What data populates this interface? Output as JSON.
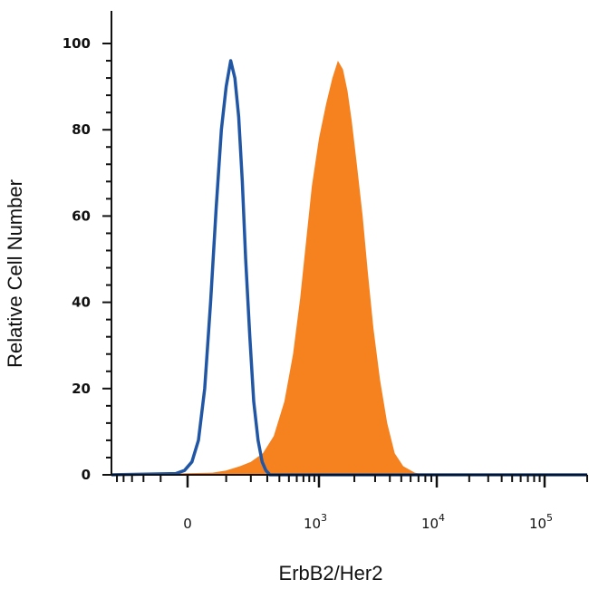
{
  "chart_data": {
    "type": "area",
    "xlabel": "ErbB2/Her2",
    "ylabel": "Relative Cell Number",
    "x_scale": "biexponential",
    "ylim": [
      0,
      100
    ],
    "xlim": [
      -600,
      200000
    ],
    "y_ticks": [
      {
        "value": 0,
        "label": "0"
      },
      {
        "value": 20,
        "label": "20"
      },
      {
        "value": 40,
        "label": "40"
      },
      {
        "value": 60,
        "label": "60"
      },
      {
        "value": 80,
        "label": "80"
      },
      {
        "value": 100,
        "label": "100"
      }
    ],
    "x_ticks": [
      {
        "value": 0,
        "base": "0",
        "exp": ""
      },
      {
        "value": 1000,
        "base": "10",
        "exp": "3"
      },
      {
        "value": 10000,
        "base": "10",
        "exp": "4"
      },
      {
        "value": 100000,
        "base": "10",
        "exp": "5"
      }
    ],
    "series": [
      {
        "style": "filled",
        "color": "#f5821f",
        "x": [
          -600,
          60,
          100,
          150,
          200,
          270,
          350,
          450,
          550,
          650,
          750,
          850,
          1000,
          1150,
          1300,
          1450,
          1600,
          1750,
          1900,
          2100,
          2350,
          2600,
          2900,
          3300,
          3800,
          4400,
          5200,
          6500,
          8000,
          200000
        ],
        "y": [
          0,
          0.5,
          1,
          2,
          3,
          5,
          9,
          17,
          28,
          41,
          55,
          67,
          78,
          86,
          92,
          96,
          94,
          89,
          82,
          72,
          60,
          47,
          34,
          22,
          12,
          5,
          2,
          0.5,
          0,
          0
        ]
      },
      {
        "style": "outline",
        "color": "#2156a5",
        "x": [
          -600,
          -40,
          -10,
          10,
          25,
          40,
          55,
          70,
          85,
          100,
          115,
          130,
          145,
          160,
          175,
          195,
          215,
          240,
          265,
          290,
          320,
          200000
        ],
        "y": [
          0,
          0.3,
          1,
          3,
          8,
          20,
          40,
          62,
          80,
          90,
          96,
          92,
          83,
          68,
          50,
          32,
          17,
          8,
          3,
          1,
          0,
          0
        ]
      }
    ]
  }
}
